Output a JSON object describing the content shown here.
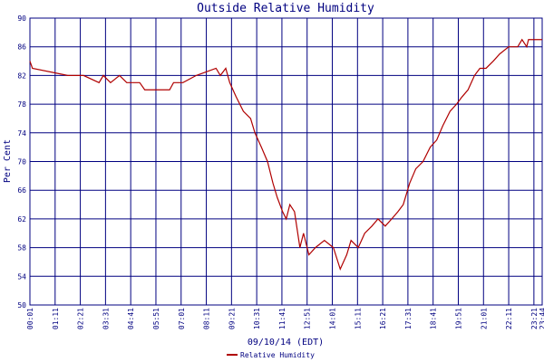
{
  "chart_data": {
    "type": "line",
    "title": "Outside Relative Humidity",
    "y_label": "Per Cent",
    "x_label": "09/10/14 (EDT)",
    "grid": true,
    "legend": "bottom",
    "xlim": [
      "00:01",
      "23:44"
    ],
    "xticks": [
      "00:01",
      "01:11",
      "02:21",
      "03:31",
      "04:41",
      "05:51",
      "07:01",
      "08:11",
      "09:21",
      "10:31",
      "11:41",
      "12:51",
      "14:01",
      "15:11",
      "16:21",
      "17:31",
      "18:41",
      "19:51",
      "21:01",
      "22:11",
      "23:21",
      "23:44"
    ],
    "ylim": [
      50,
      90
    ],
    "yticks": [
      50,
      54,
      58,
      62,
      66,
      70,
      74,
      78,
      82,
      86,
      90
    ],
    "x": [
      "00:01",
      "00:08",
      "01:46",
      "02:30",
      "03:13",
      "03:25",
      "03:45",
      "04:10",
      "04:30",
      "05:06",
      "05:20",
      "06:29",
      "06:40",
      "07:06",
      "07:43",
      "08:38",
      "08:50",
      "09:05",
      "09:16",
      "09:34",
      "09:54",
      "10:14",
      "10:26",
      "10:44",
      "11:01",
      "11:16",
      "11:28",
      "11:43",
      "11:53",
      "12:03",
      "12:16",
      "12:31",
      "12:41",
      "12:56",
      "13:14",
      "13:39",
      "14:04",
      "14:23",
      "14:41",
      "14:53",
      "15:13",
      "15:31",
      "15:51",
      "16:08",
      "16:28",
      "16:46",
      "17:03",
      "17:18",
      "17:36",
      "17:53",
      "18:13",
      "18:33",
      "18:51",
      "19:08",
      "19:28",
      "19:46",
      "20:01",
      "20:18",
      "20:36",
      "20:51",
      "21:08",
      "21:28",
      "21:46",
      "22:11",
      "22:36",
      "22:48",
      "23:01",
      "23:06",
      "23:44"
    ],
    "series": [
      {
        "name": "Relative Humidity",
        "color": "#b00000",
        "values": [
          84,
          83,
          82,
          82,
          81,
          82,
          81,
          82,
          81,
          81,
          80,
          80,
          81,
          81,
          82,
          83,
          82,
          83,
          81,
          79,
          77,
          76,
          74,
          72,
          70,
          67,
          65,
          63,
          62,
          64,
          63,
          58,
          60,
          57,
          58,
          59,
          58,
          55,
          57,
          59,
          58,
          60,
          61,
          62,
          61,
          62,
          63,
          64,
          67,
          69,
          70,
          72,
          73,
          75,
          77,
          78,
          79,
          80,
          82,
          83,
          83,
          84,
          85,
          86,
          86,
          87,
          86,
          87,
          87
        ]
      }
    ]
  }
}
